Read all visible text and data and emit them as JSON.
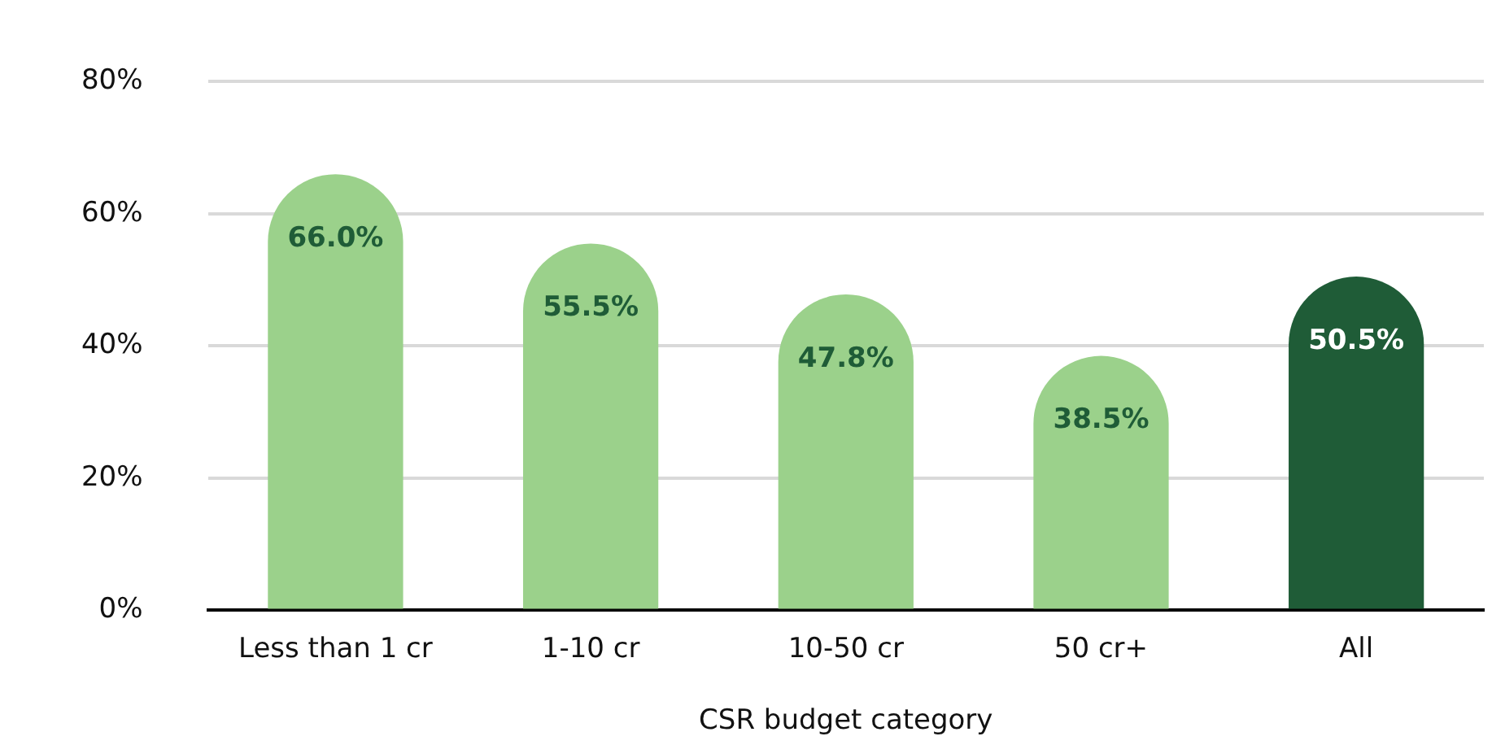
{
  "chart_data": {
    "type": "bar",
    "xlabel": "CSR budget category",
    "categories": [
      "Less than 1 cr",
      "1-10 cr",
      "10-50 cr",
      "50 cr+",
      "All"
    ],
    "values": [
      66.0,
      55.5,
      47.8,
      38.5,
      50.5
    ],
    "colors": [
      "#9bd18b",
      "#9bd18b",
      "#9bd18b",
      "#9bd18b",
      "#1f5c37"
    ],
    "value_labels": [
      "66.0%",
      "55.5%",
      "47.8%",
      "38.5%",
      "50.5%"
    ],
    "ylim": [
      0,
      80
    ],
    "yticks": [
      {
        "value": 0,
        "label": "0%"
      },
      {
        "value": 20,
        "label": "20%"
      },
      {
        "value": 40,
        "label": "40%"
      },
      {
        "value": 60,
        "label": "60%"
      },
      {
        "value": 80,
        "label": "80%"
      }
    ],
    "grid": "y",
    "legend": false
  }
}
